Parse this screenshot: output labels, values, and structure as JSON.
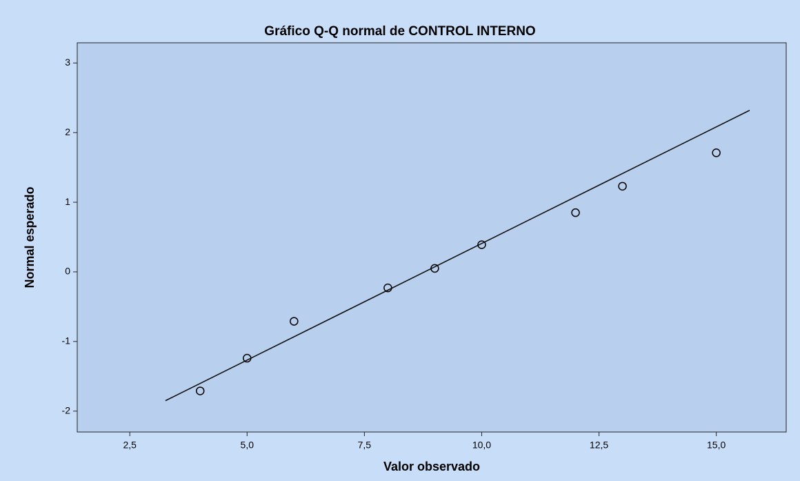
{
  "chart_data": {
    "type": "scatter",
    "title": "Gráfico Q-Q normal de CONTROL INTERNO",
    "x_label": "Valor observado",
    "y_label": "Normal esperado",
    "x": [
      4,
      5,
      6,
      8,
      9,
      10,
      12,
      13,
      15
    ],
    "values": [
      -1.71,
      -1.24,
      -0.71,
      -0.23,
      0.05,
      0.39,
      0.85,
      1.23,
      1.71
    ],
    "color": "#000000",
    "fit_line": {
      "x": [
        3.26,
        15.71
      ],
      "y": [
        -1.85,
        2.32
      ]
    },
    "xlim": [
      1.38,
      16.49
    ],
    "xticks": [
      {
        "value": 2.5,
        "label": "2,5"
      },
      {
        "value": 5,
        "label": "5,0"
      },
      {
        "value": 7.5,
        "label": "7,5"
      },
      {
        "value": 10,
        "label": "10,0"
      },
      {
        "value": 12.5,
        "label": "12,5"
      },
      {
        "value": 15,
        "label": "15,0"
      }
    ],
    "ylim": [
      -2.3,
      3.29
    ],
    "yticks": [
      -2,
      -1,
      0,
      1,
      2,
      3
    ],
    "grid": false
  }
}
